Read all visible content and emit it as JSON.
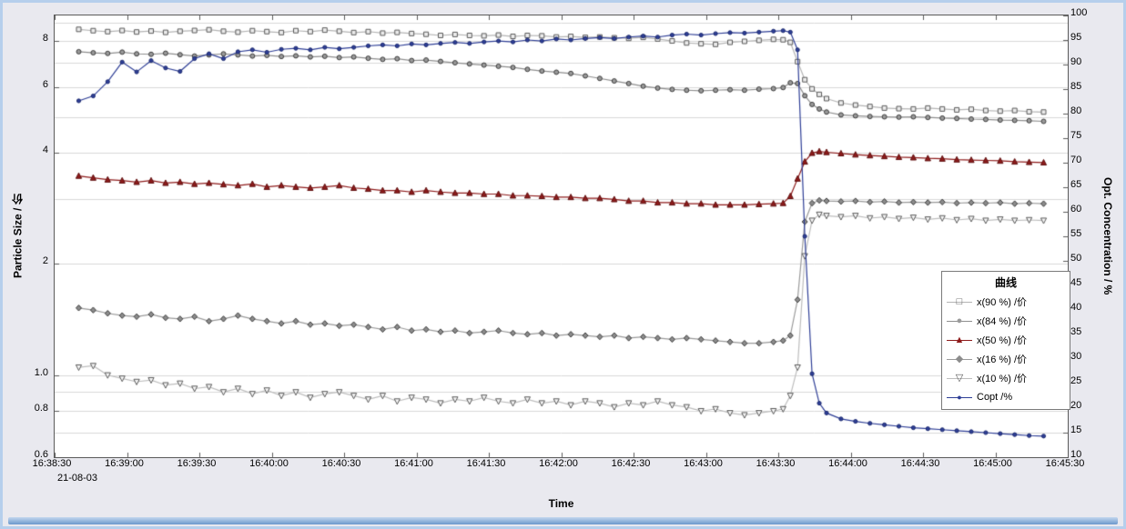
{
  "colors": {
    "background": "#e9e9ef",
    "plot_background": "#ffffff",
    "grid": "#d9d9d9",
    "axis": "#5a5a5a",
    "frame": "#b6cfec"
  },
  "chart_data": {
    "type": "line",
    "xlabel": "Time",
    "ylabel_left": "Particle Size / 价",
    "ylabel_right": "Opt. Concentration / %",
    "date_label": "21-08-03",
    "legend": {
      "title": "曲线",
      "position": "right-middle"
    },
    "x_range_seconds": [
      0,
      420
    ],
    "x_ticks": [
      {
        "s": 0,
        "label": "16:38:30"
      },
      {
        "s": 30,
        "label": "16:39:00"
      },
      {
        "s": 60,
        "label": "16:39:30"
      },
      {
        "s": 90,
        "label": "16:40:00"
      },
      {
        "s": 120,
        "label": "16:40:30"
      },
      {
        "s": 150,
        "label": "16:41:00"
      },
      {
        "s": 180,
        "label": "16:41:30"
      },
      {
        "s": 210,
        "label": "16:42:00"
      },
      {
        "s": 240,
        "label": "16:42:30"
      },
      {
        "s": 270,
        "label": "16:43:00"
      },
      {
        "s": 300,
        "label": "16:43:30"
      },
      {
        "s": 330,
        "label": "16:44:00"
      },
      {
        "s": 360,
        "label": "16:44:30"
      },
      {
        "s": 390,
        "label": "16:45:00"
      },
      {
        "s": 420,
        "label": "16:45:30"
      }
    ],
    "y_left": {
      "scale": "log",
      "min": 0.6,
      "max": 9.4,
      "ticks": [
        {
          "v": 8,
          "label": "8"
        },
        {
          "v": 6,
          "label": "6"
        },
        {
          "v": 4,
          "label": "4"
        },
        {
          "v": 2,
          "label": "2"
        },
        {
          "v": 1,
          "label": "1.0"
        },
        {
          "v": 0.8,
          "label": "0.8"
        },
        {
          "v": 0.6,
          "label": "0.6"
        }
      ],
      "grid_values": [
        0.7,
        0.8,
        0.9,
        1,
        2,
        3,
        4,
        5,
        6,
        7,
        8,
        9
      ]
    },
    "y_right": {
      "scale": "linear",
      "min": 10,
      "max": 100,
      "ticks": [
        {
          "v": 100,
          "label": "100"
        },
        {
          "v": 95,
          "label": "95"
        },
        {
          "v": 90,
          "label": "90"
        },
        {
          "v": 85,
          "label": "85"
        },
        {
          "v": 80,
          "label": "80"
        },
        {
          "v": 75,
          "label": "75"
        },
        {
          "v": 70,
          "label": "70"
        },
        {
          "v": 65,
          "label": "65"
        },
        {
          "v": 60,
          "label": "60"
        },
        {
          "v": 55,
          "label": "55"
        },
        {
          "v": 50,
          "label": "50"
        },
        {
          "v": 45,
          "label": "45"
        },
        {
          "v": 40,
          "label": "40"
        },
        {
          "v": 35,
          "label": "35"
        },
        {
          "v": 30,
          "label": "30"
        },
        {
          "v": 25,
          "label": "25"
        },
        {
          "v": 20,
          "label": "20"
        },
        {
          "v": 15,
          "label": "15"
        },
        {
          "v": 10,
          "label": "10"
        }
      ]
    },
    "x": [
      10,
      16,
      22,
      28,
      34,
      40,
      46,
      52,
      58,
      64,
      70,
      76,
      82,
      88,
      94,
      100,
      106,
      112,
      118,
      124,
      130,
      136,
      142,
      148,
      154,
      160,
      166,
      172,
      178,
      184,
      190,
      196,
      202,
      208,
      214,
      220,
      226,
      232,
      238,
      244,
      250,
      256,
      262,
      268,
      274,
      280,
      286,
      292,
      298,
      302,
      305,
      308,
      311,
      314,
      317,
      320,
      326,
      332,
      338,
      344,
      350,
      356,
      362,
      368,
      374,
      380,
      386,
      392,
      398,
      404,
      410
    ],
    "series": [
      {
        "name": "x(90 %) /价",
        "axis": "left",
        "marker": "square",
        "marker_fill": "#ececec",
        "marker_stroke": "#5a5a5a",
        "line_color": "#b4b4b4",
        "values": [
          8.62,
          8.55,
          8.5,
          8.56,
          8.48,
          8.53,
          8.46,
          8.52,
          8.56,
          8.6,
          8.52,
          8.47,
          8.55,
          8.5,
          8.45,
          8.55,
          8.5,
          8.58,
          8.52,
          8.45,
          8.5,
          8.42,
          8.46,
          8.4,
          8.36,
          8.3,
          8.35,
          8.3,
          8.28,
          8.32,
          8.25,
          8.3,
          8.28,
          8.22,
          8.25,
          8.2,
          8.22,
          8.18,
          8.15,
          8.2,
          8.12,
          8.02,
          7.92,
          7.88,
          7.85,
          7.95,
          8.0,
          8.05,
          8.1,
          8.08,
          7.95,
          7.05,
          6.3,
          5.95,
          5.75,
          5.6,
          5.45,
          5.38,
          5.33,
          5.28,
          5.26,
          5.25,
          5.28,
          5.25,
          5.22,
          5.24,
          5.2,
          5.18,
          5.2,
          5.16,
          5.15
        ]
      },
      {
        "name": "x(84 %) /价",
        "axis": "left",
        "marker": "circle",
        "marker_fill": "#9a9a9a",
        "marker_stroke": "#3c3c3c",
        "line_color": "#8e8e8e",
        "values": [
          7.5,
          7.45,
          7.42,
          7.48,
          7.4,
          7.38,
          7.43,
          7.36,
          7.3,
          7.35,
          7.4,
          7.35,
          7.3,
          7.33,
          7.28,
          7.31,
          7.26,
          7.29,
          7.23,
          7.26,
          7.2,
          7.15,
          7.18,
          7.1,
          7.12,
          7.06,
          7.0,
          6.95,
          6.9,
          6.85,
          6.8,
          6.72,
          6.65,
          6.6,
          6.55,
          6.45,
          6.35,
          6.25,
          6.15,
          6.05,
          5.98,
          5.93,
          5.9,
          5.88,
          5.9,
          5.92,
          5.9,
          5.94,
          5.96,
          6.0,
          6.18,
          6.15,
          5.7,
          5.4,
          5.25,
          5.15,
          5.06,
          5.03,
          5.01,
          5.0,
          4.99,
          5.0,
          4.98,
          4.96,
          4.95,
          4.93,
          4.92,
          4.9,
          4.89,
          4.88,
          4.86
        ]
      },
      {
        "name": "x(50 %) /价",
        "axis": "left",
        "marker": "triangle-up",
        "marker_fill": "#8e1b1b",
        "marker_stroke": "#5e0e0e",
        "line_color": "#8e1b1b",
        "values": [
          3.46,
          3.42,
          3.38,
          3.36,
          3.33,
          3.36,
          3.31,
          3.33,
          3.29,
          3.31,
          3.28,
          3.26,
          3.29,
          3.23,
          3.26,
          3.23,
          3.21,
          3.23,
          3.26,
          3.21,
          3.19,
          3.16,
          3.16,
          3.13,
          3.16,
          3.13,
          3.11,
          3.11,
          3.09,
          3.09,
          3.06,
          3.06,
          3.05,
          3.03,
          3.03,
          3.01,
          3.01,
          2.99,
          2.96,
          2.96,
          2.93,
          2.93,
          2.91,
          2.91,
          2.89,
          2.89,
          2.89,
          2.9,
          2.91,
          2.92,
          3.05,
          3.4,
          3.78,
          3.99,
          4.03,
          4.01,
          3.98,
          3.95,
          3.93,
          3.91,
          3.89,
          3.88,
          3.86,
          3.85,
          3.83,
          3.82,
          3.81,
          3.8,
          3.78,
          3.77,
          3.76
        ]
      },
      {
        "name": "x(16 %) /价",
        "axis": "left",
        "marker": "diamond",
        "marker_fill": "#8c8c8c",
        "marker_stroke": "#3c3c3c",
        "line_color": "#9a9a9a",
        "values": [
          1.52,
          1.5,
          1.47,
          1.45,
          1.44,
          1.46,
          1.43,
          1.42,
          1.44,
          1.4,
          1.42,
          1.45,
          1.42,
          1.4,
          1.38,
          1.4,
          1.37,
          1.38,
          1.36,
          1.37,
          1.35,
          1.33,
          1.35,
          1.32,
          1.33,
          1.31,
          1.32,
          1.3,
          1.31,
          1.32,
          1.3,
          1.29,
          1.3,
          1.28,
          1.29,
          1.28,
          1.27,
          1.28,
          1.26,
          1.27,
          1.26,
          1.25,
          1.26,
          1.25,
          1.24,
          1.23,
          1.22,
          1.22,
          1.23,
          1.24,
          1.28,
          1.6,
          2.6,
          2.92,
          2.97,
          2.96,
          2.95,
          2.96,
          2.94,
          2.95,
          2.93,
          2.94,
          2.93,
          2.94,
          2.92,
          2.93,
          2.92,
          2.93,
          2.91,
          2.92,
          2.91
        ]
      },
      {
        "name": "x(10 %) /价",
        "axis": "left",
        "marker": "triangle-down",
        "marker_fill": "#f6f6f6",
        "marker_stroke": "#5a5a5a",
        "line_color": "#bdbdbd",
        "values": [
          1.05,
          1.06,
          1.0,
          0.98,
          0.96,
          0.97,
          0.94,
          0.95,
          0.92,
          0.93,
          0.9,
          0.92,
          0.89,
          0.91,
          0.88,
          0.9,
          0.87,
          0.89,
          0.9,
          0.88,
          0.86,
          0.88,
          0.85,
          0.87,
          0.86,
          0.84,
          0.86,
          0.85,
          0.87,
          0.85,
          0.84,
          0.86,
          0.84,
          0.85,
          0.83,
          0.85,
          0.84,
          0.82,
          0.84,
          0.83,
          0.85,
          0.83,
          0.82,
          0.8,
          0.81,
          0.79,
          0.78,
          0.79,
          0.8,
          0.81,
          0.88,
          1.05,
          2.1,
          2.62,
          2.72,
          2.7,
          2.68,
          2.7,
          2.66,
          2.68,
          2.65,
          2.67,
          2.64,
          2.66,
          2.63,
          2.65,
          2.62,
          2.64,
          2.62,
          2.63,
          2.62
        ]
      },
      {
        "name": "Copt /%",
        "axis": "right",
        "marker": "circle-small",
        "marker_fill": "#2e3e96",
        "marker_stroke": "#1c2a6e",
        "line_color": "#2e3e96",
        "values": [
          82.6,
          83.6,
          86.5,
          90.5,
          88.5,
          90.8,
          89.3,
          88.6,
          91.2,
          92.2,
          91.2,
          92.6,
          93.0,
          92.5,
          93.1,
          93.3,
          93.0,
          93.5,
          93.2,
          93.5,
          93.8,
          94.0,
          93.8,
          94.2,
          94.0,
          94.3,
          94.5,
          94.3,
          94.6,
          94.8,
          94.6,
          95.0,
          94.8,
          95.2,
          95.0,
          95.3,
          95.5,
          95.3,
          95.6,
          95.8,
          95.6,
          96.0,
          96.2,
          96.0,
          96.3,
          96.5,
          96.4,
          96.6,
          96.8,
          96.9,
          96.6,
          93.0,
          55.0,
          27.0,
          21.0,
          19.0,
          17.8,
          17.3,
          16.9,
          16.6,
          16.3,
          16.0,
          15.8,
          15.6,
          15.4,
          15.2,
          15.0,
          14.8,
          14.6,
          14.4,
          14.3
        ]
      }
    ]
  }
}
